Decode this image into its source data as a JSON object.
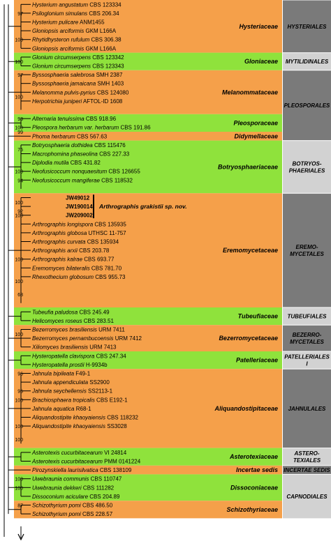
{
  "colors": {
    "orange": "#f5a04a",
    "green": "#8fe23c",
    "order_dark": "#7a7a7a",
    "order_light": "#d2d2d2",
    "line": "#000000"
  },
  "families": [
    {
      "label": "Hysteriaceae",
      "color": "orange",
      "row_start": 0,
      "row_end": 5
    },
    {
      "label": "Gloniaceae",
      "color": "green",
      "row_start": 6,
      "row_end": 7
    },
    {
      "label": "Melanommataceae",
      "color": "orange",
      "row_start": 8,
      "row_end": 12
    },
    {
      "label": "Pleosporaceae",
      "color": "green",
      "row_start": 13,
      "row_end": 14
    },
    {
      "label": "Didymellaceae",
      "color": "orange",
      "row_start": 15,
      "row_end": 15
    },
    {
      "label": "Botryosphaeriaceae",
      "color": "green",
      "row_start": 16,
      "row_end": 21
    },
    {
      "label": "Eremomycetaceae",
      "color": "orange",
      "row_start": 22,
      "row_end": 34
    },
    {
      "label": "Tubeufiaceae",
      "color": "green",
      "row_start": 35,
      "row_end": 36
    },
    {
      "label": "Bezerromycetaceae",
      "color": "orange",
      "row_start": 37,
      "row_end": 39
    },
    {
      "label": "Patelleriaceae",
      "color": "green",
      "row_start": 40,
      "row_end": 41
    },
    {
      "label": "Aliquandostipitaceae",
      "color": "orange",
      "row_start": 42,
      "row_end": 50
    },
    {
      "label": "Asterotexiaceae",
      "color": "green",
      "row_start": 51,
      "row_end": 52
    },
    {
      "label": "Incertae sedis",
      "color": "orange",
      "row_start": 53,
      "row_end": 53
    },
    {
      "label": "Dissoconiaceae",
      "color": "green",
      "row_start": 54,
      "row_end": 56
    },
    {
      "label": "Schizothyriaceae",
      "color": "orange",
      "row_start": 57,
      "row_end": 58
    }
  ],
  "orders": [
    {
      "lines": [
        "HYSTERIALES"
      ],
      "shade": "order_dark",
      "row_start": 0,
      "row_end": 5
    },
    {
      "lines": [
        "MYTILIDINALES"
      ],
      "shade": "order_light",
      "row_start": 6,
      "row_end": 7
    },
    {
      "lines": [
        "PLEOSPORALES"
      ],
      "shade": "order_dark",
      "row_start": 8,
      "row_end": 15
    },
    {
      "lines": [
        "BOTRYOS-",
        "PHAERIALES"
      ],
      "shade": "order_light",
      "row_start": 16,
      "row_end": 21
    },
    {
      "lines": [
        "EREMO-",
        "MYCETALES"
      ],
      "shade": "order_dark",
      "row_start": 22,
      "row_end": 34
    },
    {
      "lines": [
        "TUBEUFIALES"
      ],
      "shade": "order_light",
      "row_start": 35,
      "row_end": 36
    },
    {
      "lines": [
        "BEZERRO-",
        "MYCETALES"
      ],
      "shade": "order_dark",
      "row_start": 37,
      "row_end": 39
    },
    {
      "lines": [
        "PATELLERIALES",
        "I"
      ],
      "shade": "order_light",
      "row_start": 40,
      "row_end": 41
    },
    {
      "lines": [
        "JAHNULALES"
      ],
      "shade": "order_dark",
      "row_start": 42,
      "row_end": 50
    },
    {
      "lines": [
        "ASTERO-",
        "TEXIALES"
      ],
      "shade": "order_light",
      "row_start": 51,
      "row_end": 52
    },
    {
      "lines": [
        "INCERTAE SEDIS"
      ],
      "shade": "order_dark",
      "row_start": 53,
      "row_end": 53
    },
    {
      "lines": [
        "CAPNODIALES"
      ],
      "shade": "order_light",
      "row_start": 54,
      "row_end": 58
    }
  ],
  "taxa": [
    {
      "species": "Hysterium angustatum",
      "strain": "CBS 123334"
    },
    {
      "species": "Psiloglonium simulans",
      "strain": "CBS 206.34"
    },
    {
      "species": "Hysterium pulicare",
      "strain": "ANM1455"
    },
    {
      "species": "Gloniopsis arciformis",
      "strain": "GKM L166A"
    },
    {
      "species": "Rhytidhysteron rufulum",
      "strain": "CBS 306.38"
    },
    {
      "species": "Gloniopsis arciformis",
      "strain": "GKM L166A"
    },
    {
      "species": "Glonium circumserpens",
      "strain": "CBS 123342"
    },
    {
      "species": "Glonium circumserpens",
      "strain": "CBS 123343"
    },
    {
      "species": "Byssosphaeria salebrosa",
      "strain": "SMH 2387"
    },
    {
      "species": "Byssosphaeria jamaicana",
      "strain": "SMH 1403"
    },
    {
      "species": "Melanomma pulvis-pyrius",
      "strain": "CBS 124080"
    },
    {
      "species": "Herpotrichia juniperi",
      "strain": "AFTOL-ID 1608"
    },
    {
      "species": "",
      "strain": ""
    },
    {
      "species": "Alternaria tenuissima",
      "strain": "CBS 918.96"
    },
    {
      "species": "Pleospora herbarum var. herbarum",
      "strain": "CBS 191.86"
    },
    {
      "species": "Phoma herbarum",
      "strain": "CBS 567.63"
    },
    {
      "species": "Botryosphaeria dothidea",
      "strain": "CBS 115476"
    },
    {
      "species": "Macrophomina phaseolina",
      "strain": "CBS 227.33"
    },
    {
      "species": "Diplodia mutila",
      "strain": "CBS 431.82"
    },
    {
      "species": "Neofusicoccum nonquaesitum",
      "strain": "CBS 126655"
    },
    {
      "species": "Neofusicoccum mangiferae",
      "strain": "CBS 118532"
    },
    {
      "species": "",
      "strain": ""
    },
    {
      "species": "",
      "strain": "JW49012",
      "bold": true
    },
    {
      "species": "",
      "strain": "JW190014",
      "bold": true
    },
    {
      "species": "",
      "strain": "JW209002",
      "bold": true
    },
    {
      "species": "Arthrographis longispora",
      "strain": "CBS 135935"
    },
    {
      "species": "Arthrographis globosa",
      "strain": "UTHSC 11-757"
    },
    {
      "species": "Arthrographis curvata",
      "strain": "CBS 135934"
    },
    {
      "species": "Arthrographis arxii",
      "strain": "CBS 203.78"
    },
    {
      "species": "Arthrographis kalrae",
      "strain": "CBS 693.77"
    },
    {
      "species": "Eremomyces bilateralis",
      "strain": "CBS 781.70"
    },
    {
      "species": "Rhexothecium globosum",
      "strain": "CBS 955.73"
    },
    {
      "species": "",
      "strain": ""
    },
    {
      "species": "",
      "strain": ""
    },
    {
      "species": "",
      "strain": ""
    },
    {
      "species": "Tubeufia paludosa",
      "strain": "CBS 245.49"
    },
    {
      "species": "Helicomyces roseus",
      "strain": "CBS 283.51"
    },
    {
      "species": "Bezerromyces brasiliensis",
      "strain": "URM 7411"
    },
    {
      "species": "Bezerromyces pernambucoensis",
      "strain": "URM 7412"
    },
    {
      "species": "Xiliomyces brasiliensis",
      "strain": "URM 7413"
    },
    {
      "species": "Hysteropatella clavispora",
      "strain": "CBS 247.34"
    },
    {
      "species": "Hysteropatella prostii",
      "strain": "H-9934b"
    },
    {
      "species": "Jahnula bipileata",
      "strain": "F49-1"
    },
    {
      "species": "Jahnula appendiculata",
      "strain": "SS2900"
    },
    {
      "species": "Jahnula seychellensis",
      "strain": "SS2113-1"
    },
    {
      "species": "Brachiosphaera tropicalis",
      "strain": "CBS E192-1"
    },
    {
      "species": "Jahnula aquatica",
      "strain": "R68-1"
    },
    {
      "species": "Aliquandostipite khaoyaiensis",
      "strain": "CBS 118232"
    },
    {
      "species": "Aliquandostipite khaoyaiensis",
      "strain": "SS3028"
    },
    {
      "species": "",
      "strain": ""
    },
    {
      "species": "",
      "strain": ""
    },
    {
      "species": "Asterotexis cucurbitacearum",
      "strain": "VI 24814"
    },
    {
      "species": "Asterotexis cucurbitacearum",
      "strain": "PMM 0141224"
    },
    {
      "species": "Pirozynskiella laurisilvatica",
      "strain": "CBS 138109"
    },
    {
      "species": "Uwebraunia communis",
      "strain": "CBS 110747"
    },
    {
      "species": "Uwebraunia dekkeri",
      "strain": "CBS 111282"
    },
    {
      "species": "Dissoconium aciculare",
      "strain": "CBS 204.89"
    },
    {
      "species": "Schizothyrium pomi",
      "strain": "CBS 486.50"
    },
    {
      "species": "Schizothyrium pomi",
      "strain": "CBS 228.57"
    }
  ],
  "new_species_label": "Arthrographis grakistii sp. nov.",
  "support_values": [
    {
      "value": "100",
      "anchor": "row",
      "row": 4.5
    },
    {
      "value": "97",
      "anchor": "row",
      "row": 1.5
    },
    {
      "value": "100",
      "anchor": "row",
      "row": 7
    },
    {
      "value": "97",
      "anchor": "row",
      "row": 8.5
    },
    {
      "value": "100",
      "anchor": "row",
      "row": 11
    },
    {
      "value": "99",
      "anchor": "row",
      "row": 15
    },
    {
      "value": "98",
      "anchor": "row",
      "row": 13.5
    },
    {
      "value": "100",
      "anchor": "row",
      "row": 14.5
    },
    {
      "value": "75",
      "anchor": "row",
      "row": 17
    },
    {
      "value": "100",
      "anchor": "row",
      "row": 19.5
    },
    {
      "value": "94",
      "anchor": "row",
      "row": 20.5
    },
    {
      "value": "100",
      "anchor": "row",
      "row": 23
    },
    {
      "value": "92",
      "anchor": "row",
      "row": 24
    },
    {
      "value": "100",
      "anchor": "row",
      "row": 24.5
    },
    {
      "value": "100",
      "anchor": "row",
      "row": 29.5
    },
    {
      "value": "100",
      "anchor": "row",
      "row": 32
    },
    {
      "value": "68",
      "anchor": "row",
      "row": 33.5
    },
    {
      "value": "100",
      "anchor": "row",
      "row": 38
    },
    {
      "value": "96",
      "anchor": "row",
      "row": 42.5
    },
    {
      "value": "96",
      "anchor": "row",
      "row": 44.5
    },
    {
      "value": "100",
      "anchor": "row",
      "row": 45.5
    },
    {
      "value": "100",
      "anchor": "row",
      "row": 48.5
    },
    {
      "value": "100",
      "anchor": "row",
      "row": 50
    },
    {
      "value": "100",
      "anchor": "row",
      "row": 54.5
    },
    {
      "value": "100",
      "anchor": "row",
      "row": 55.5
    },
    {
      "value": "87",
      "anchor": "row",
      "row": 57.5
    }
  ]
}
